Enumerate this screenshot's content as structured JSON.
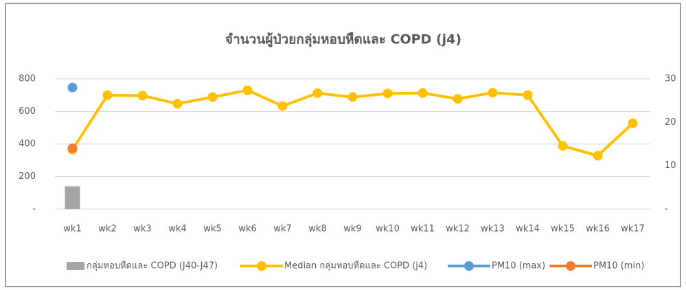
{
  "chart_data": {
    "type": "bar",
    "title": "จำนวนผู้ป่วยกลุ่มหอบหืดและ COPD (j4)",
    "categories": [
      "wk1",
      "wk2",
      "wk3",
      "wk4",
      "wk5",
      "wk6",
      "wk7",
      "wk8",
      "wk9",
      "wk10",
      "wk11",
      "wk12",
      "wk13",
      "wk14",
      "wk15",
      "wk16",
      "wk17"
    ],
    "series": [
      {
        "name": "กลุ่มหอบหืดและ COPD (J40-J47)",
        "type": "bar",
        "color": "#a5a5a5",
        "values": [
          140,
          null,
          null,
          null,
          null,
          null,
          null,
          null,
          null,
          null,
          null,
          null,
          null,
          null,
          null,
          null,
          null
        ]
      },
      {
        "name": "Median กลุ่มหอบหืดและ COPD (j4)",
        "type": "line",
        "color": "#ffc000",
        "values": [
          365,
          700,
          697,
          647,
          688,
          730,
          633,
          712,
          688,
          710,
          713,
          677,
          715,
          700,
          388,
          328,
          527
        ]
      },
      {
        "name": "PM10 (max)",
        "type": "line",
        "color": "#5b9bd5",
        "axis": "y2",
        "values": [
          28,
          null,
          null,
          null,
          null,
          null,
          null,
          null,
          null,
          null,
          null,
          null,
          null,
          null,
          null,
          null,
          null
        ]
      },
      {
        "name": "PM10 (min)",
        "type": "line",
        "color": "#ed7d31",
        "axis": "y2",
        "values": [
          14,
          null,
          null,
          null,
          null,
          null,
          null,
          null,
          null,
          null,
          null,
          null,
          null,
          null,
          null,
          null,
          null
        ]
      }
    ],
    "ylim": [
      0,
      800
    ],
    "yticks": [
      {
        "value": 0,
        "label": "-"
      },
      200,
      400,
      600,
      800
    ],
    "y2lim": [
      0,
      30
    ],
    "y2ticks": [
      {
        "value": 0,
        "label": "-"
      },
      10,
      20,
      30
    ],
    "grid": true
  }
}
